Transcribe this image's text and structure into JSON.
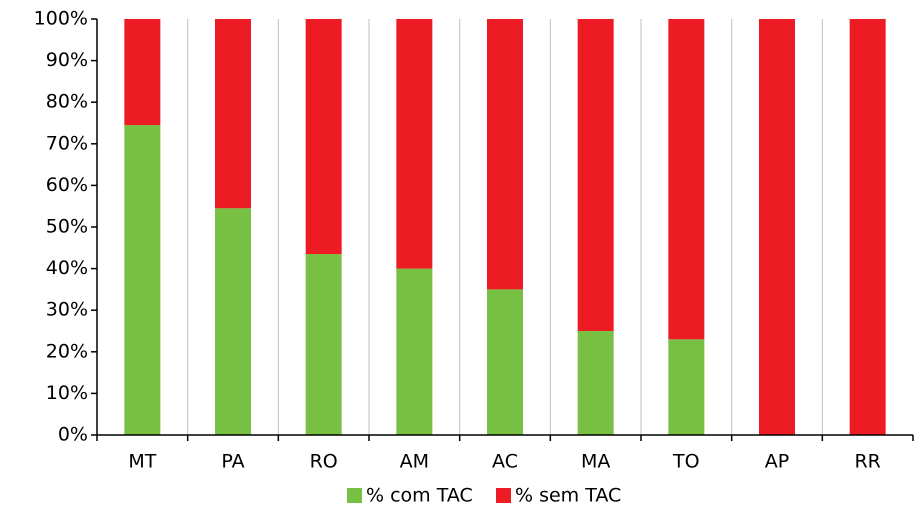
{
  "chart_data": {
    "type": "stacked_bar",
    "categories": [
      "MT",
      "PA",
      "RO",
      "AM",
      "AC",
      "MA",
      "TO",
      "AP",
      "RR"
    ],
    "series": [
      {
        "name": "% com TAC",
        "color": "#77c043",
        "values": [
          74.5,
          54.5,
          43.5,
          40,
          35,
          25,
          23,
          0,
          0
        ]
      },
      {
        "name": "% sem TAC",
        "color": "#ed1c24",
        "values": [
          25.5,
          45.5,
          56.5,
          60,
          65,
          75,
          77,
          100,
          100
        ]
      }
    ],
    "ylim": [
      0,
      100
    ],
    "yticks": [
      {
        "value": 0,
        "label": "0%"
      },
      {
        "value": 10,
        "label": "10%"
      },
      {
        "value": 20,
        "label": "20%"
      },
      {
        "value": 30,
        "label": "30%"
      },
      {
        "value": 40,
        "label": "40%"
      },
      {
        "value": 50,
        "label": "50%"
      },
      {
        "value": 60,
        "label": "60%"
      },
      {
        "value": 70,
        "label": "70%"
      },
      {
        "value": 80,
        "label": "80%"
      },
      {
        "value": 90,
        "label": "90%"
      },
      {
        "value": 100,
        "label": "100%"
      }
    ],
    "legend": "bottom"
  }
}
